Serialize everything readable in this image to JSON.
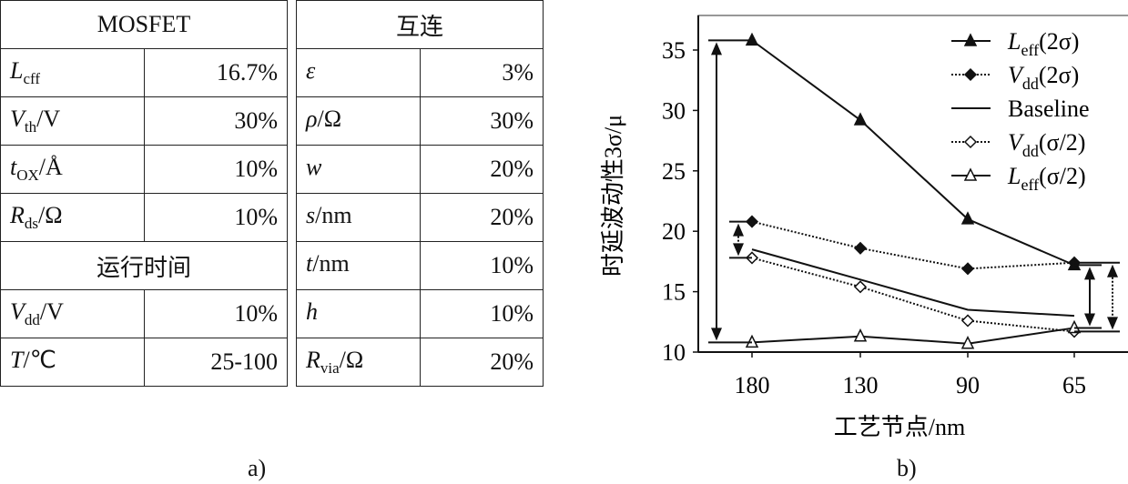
{
  "table_a": {
    "mosfet_header": "MOSFET",
    "runtime_header": "运行时间",
    "mosfet_rows": [
      {
        "sym": "L",
        "sub": "cff",
        "unit": "",
        "value": "16.7%"
      },
      {
        "sym": "V",
        "sub": "th",
        "unit": "/V",
        "value": "30%"
      },
      {
        "sym": "t",
        "sub": "OX",
        "unit": "/Å",
        "value": "10%"
      },
      {
        "sym": "R",
        "sub": "ds",
        "unit": "/Ω",
        "value": "10%"
      }
    ],
    "runtime_rows": [
      {
        "sym": "V",
        "sub": "dd",
        "unit": "/V",
        "value": "10%"
      },
      {
        "sym": "T",
        "sub": "",
        "unit": "/℃",
        "value": "25-100"
      }
    ],
    "interconnect_header": "互连",
    "interconnect_rows": [
      {
        "sym": "ε",
        "sub": "",
        "unit": "",
        "value": "3%"
      },
      {
        "sym": "ρ",
        "sub": "",
        "unit": "/Ω",
        "value": "30%"
      },
      {
        "sym": "w",
        "sub": "",
        "unit": "",
        "value": "20%"
      },
      {
        "sym": "s",
        "sub": "",
        "unit": "/nm",
        "value": "20%"
      },
      {
        "sym": "t",
        "sub": "",
        "unit": "/nm",
        "value": "10%"
      },
      {
        "sym": "h",
        "sub": "",
        "unit": "",
        "value": "10%"
      },
      {
        "sym": "R",
        "sub": "via",
        "unit": "/Ω",
        "value": "20%"
      }
    ],
    "caption": "a)"
  },
  "chart_data": {
    "type": "line",
    "categories": [
      "180",
      "130",
      "90",
      "65"
    ],
    "xlabel": "工艺节点/nm",
    "ylabel": "时延波动性3σ/μ",
    "ylim": [
      10,
      37
    ],
    "yticks": [
      "10",
      "15",
      "20",
      "25",
      "30",
      "35"
    ],
    "legend_position": "top-right",
    "caption": "b)",
    "series": [
      {
        "name": "L",
        "sub": "eff",
        "suffix": "(2σ)",
        "style": "solid",
        "marker": "triangle-filled",
        "values": [
          35.8,
          29.2,
          21.0,
          17.2
        ]
      },
      {
        "name": "V",
        "sub": "dd",
        "suffix": "(2σ)",
        "style": "dotted",
        "marker": "diamond-filled",
        "values": [
          20.8,
          18.6,
          16.9,
          17.4
        ]
      },
      {
        "name": "Baseline",
        "sub": "",
        "suffix": "",
        "style": "solid",
        "marker": "none",
        "values": [
          18.5,
          16.0,
          13.5,
          13.0
        ]
      },
      {
        "name": "V",
        "sub": "dd",
        "suffix": "(σ/2)",
        "style": "dotted",
        "marker": "diamond-open",
        "values": [
          17.8,
          15.4,
          12.6,
          11.7
        ]
      },
      {
        "name": "L",
        "sub": "eff",
        "suffix": "(σ/2)",
        "style": "solid",
        "marker": "triangle-open",
        "values": [
          10.8,
          11.3,
          10.7,
          12.0
        ]
      }
    ]
  }
}
